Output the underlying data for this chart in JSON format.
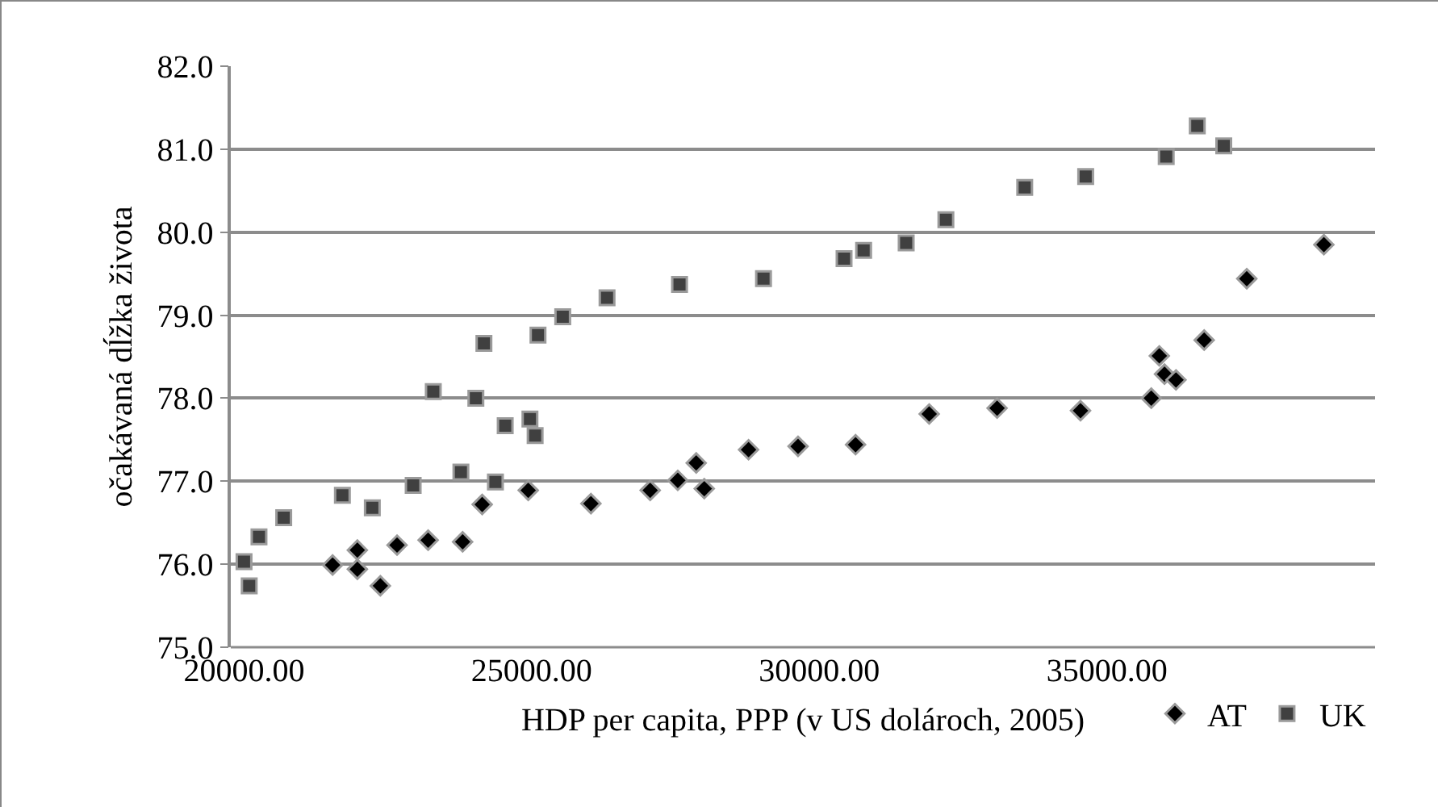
{
  "chart_data": {
    "type": "scatter",
    "xlabel": "HDP per capita, PPP (v US dolároch, 2005)",
    "ylabel": "očakávaná dĺžka života",
    "xlim": [
      19770,
      39660
    ],
    "ylim": [
      75,
      82
    ],
    "xticks": [
      {
        "value": 20000,
        "label": "20000.00"
      },
      {
        "value": 25000,
        "label": "25000.00"
      },
      {
        "value": 30000,
        "label": "30000.00"
      },
      {
        "value": 35000,
        "label": "35000.00"
      }
    ],
    "yticks": [
      {
        "value": 75,
        "label": "75.0"
      },
      {
        "value": 76,
        "label": "76.0"
      },
      {
        "value": 77,
        "label": "77.0"
      },
      {
        "value": 78,
        "label": "78.0"
      },
      {
        "value": 79,
        "label": "79.0"
      },
      {
        "value": 80,
        "label": "80.0"
      },
      {
        "value": 81,
        "label": "81.0"
      },
      {
        "value": 82,
        "label": "82.0"
      }
    ],
    "grid": "y",
    "legend": "bottom right",
    "series": [
      {
        "name": "AT",
        "color": "#000000",
        "marker": "diamond",
        "x": [
          21540,
          21970,
          21970,
          22370,
          22660,
          23200,
          23800,
          24140,
          24940,
          26030,
          27060,
          27540,
          27860,
          28000,
          28770,
          29630,
          30630,
          31910,
          33090,
          34540,
          35770,
          35910,
          36000,
          36200,
          36690,
          37430,
          38770
        ],
        "values": [
          75.99,
          76.17,
          75.94,
          75.74,
          76.23,
          76.29,
          76.27,
          76.72,
          76.89,
          76.73,
          76.89,
          77.01,
          77.22,
          76.91,
          77.38,
          77.42,
          77.44,
          77.81,
          77.88,
          77.85,
          78.0,
          78.51,
          78.29,
          78.22,
          78.7,
          79.44,
          79.85
        ]
      },
      {
        "name": "UK",
        "color": "#404040",
        "marker": "square",
        "x": [
          20000,
          20090,
          20260,
          20690,
          21710,
          22230,
          22940,
          23290,
          23770,
          24030,
          24170,
          24370,
          24540,
          24970,
          25060,
          25110,
          25540,
          26310,
          27570,
          29030,
          30430,
          30770,
          31510,
          32200,
          33570,
          34630,
          36030,
          36570,
          37030
        ],
        "values": [
          76.03,
          75.74,
          76.33,
          76.56,
          76.83,
          76.68,
          76.95,
          78.08,
          77.11,
          78.0,
          78.66,
          76.99,
          77.67,
          77.75,
          77.55,
          78.76,
          78.98,
          79.21,
          79.37,
          79.44,
          79.68,
          79.78,
          79.87,
          80.15,
          80.54,
          80.67,
          80.91,
          81.28,
          81.04
        ]
      }
    ]
  }
}
